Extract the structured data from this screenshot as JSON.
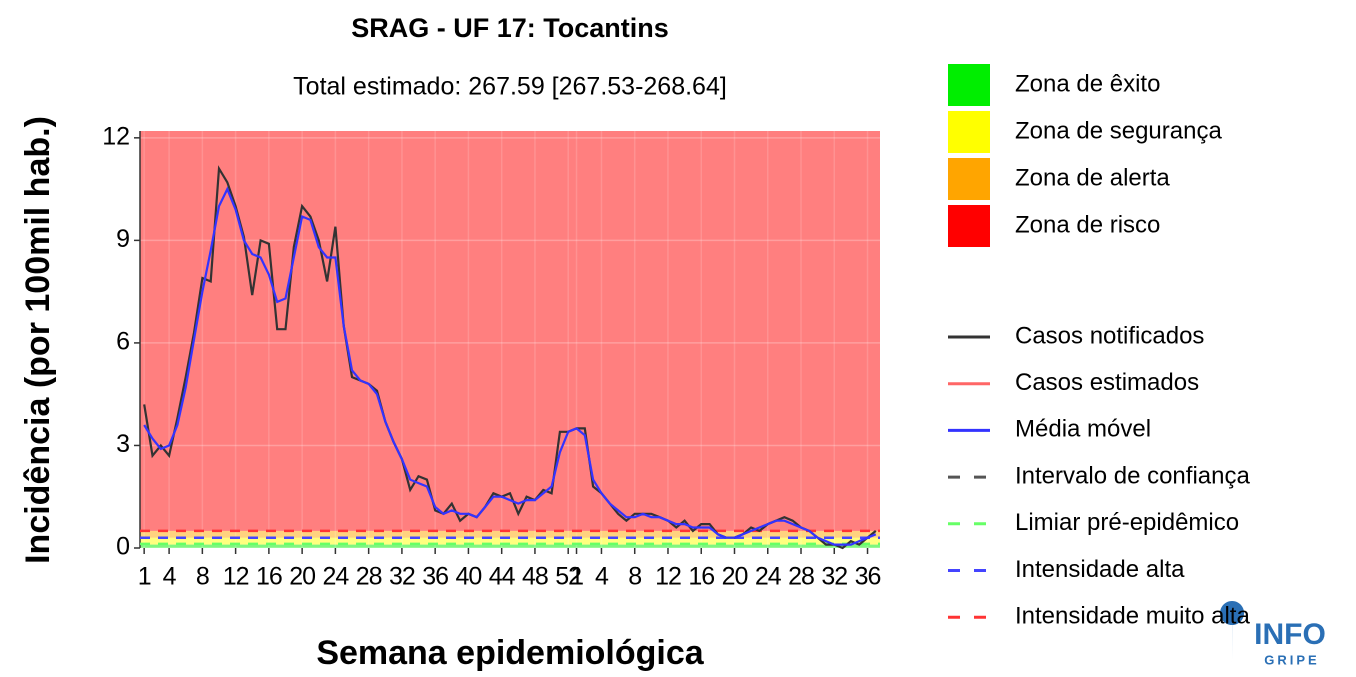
{
  "chart_data": {
    "type": "line",
    "title": "SRAG - UF 17: Tocantins",
    "subtitle": "Total estimado: 267.59 [267.53-268.64]",
    "x_label": "Semana epidemiológica",
    "y_label": "Incidência (por 100mil hab.)",
    "categories": [
      "1",
      null,
      null,
      "4",
      null,
      null,
      null,
      "8",
      null,
      null,
      null,
      "12",
      null,
      null,
      null,
      "16",
      null,
      null,
      null,
      "20",
      null,
      null,
      null,
      "24",
      null,
      null,
      null,
      "28",
      null,
      null,
      null,
      "32",
      null,
      null,
      null,
      "36",
      null,
      null,
      null,
      "40",
      null,
      null,
      null,
      "44",
      null,
      null,
      null,
      "48",
      null,
      null,
      null,
      "52",
      "1",
      null,
      null,
      "4",
      null,
      null,
      null,
      "8",
      null,
      null,
      null,
      "12",
      null,
      null,
      null,
      "16",
      null,
      null,
      null,
      "20",
      null,
      null,
      null,
      "24",
      null,
      null,
      null,
      "28",
      null,
      null,
      null,
      "32",
      null,
      null,
      null,
      "36",
      null
    ],
    "ylim": [
      0,
      12.2
    ],
    "yticks": [
      0,
      3,
      6,
      9,
      12
    ],
    "grid": true,
    "zones": [
      {
        "name": "Zona de êxito",
        "color": "#00ee00",
        "range": [
          0,
          0.1
        ]
      },
      {
        "name": "Zona de segurança",
        "color": "#ffff00",
        "range": [
          0.1,
          0.3
        ]
      },
      {
        "name": "Zona de alerta",
        "color": "#ffa500",
        "range": [
          0.3,
          0.5
        ]
      },
      {
        "name": "Zona de risco",
        "color": "#ff0000",
        "range": [
          0.5,
          12.2
        ]
      }
    ],
    "series": [
      {
        "name": "Casos notificados",
        "color": "#333333",
        "values": [
          4.2,
          2.7,
          3.0,
          2.7,
          3.8,
          5.0,
          6.3,
          7.9,
          7.8,
          11.1,
          10.7,
          10.0,
          9.1,
          7.4,
          9.0,
          8.9,
          6.4,
          6.4,
          8.8,
          10.0,
          9.7,
          9.0,
          7.8,
          9.4,
          6.5,
          5.0,
          4.9,
          4.8,
          4.6,
          3.7,
          3.1,
          2.6,
          1.7,
          2.1,
          2.0,
          1.1,
          1.0,
          1.3,
          0.8,
          1.0,
          0.9,
          1.2,
          1.6,
          1.5,
          1.6,
          1.0,
          1.5,
          1.4,
          1.7,
          1.6,
          3.4,
          3.4,
          3.5,
          3.5,
          1.8,
          1.6,
          1.3,
          1.0,
          0.8,
          1.0,
          1.0,
          1.0,
          0.9,
          0.8,
          0.6,
          0.8,
          0.5,
          0.7,
          0.7,
          0.4,
          0.3,
          0.3,
          0.4,
          0.6,
          0.5,
          0.7,
          0.8,
          0.9,
          0.8,
          0.6,
          0.5,
          0.3,
          0.1,
          0.1,
          0.0,
          0.2,
          0.1,
          0.3,
          0.5
        ]
      },
      {
        "name": "Casos estimados",
        "color": "#ff6666"
      },
      {
        "name": "Média móvel",
        "color": "#3333ff",
        "values": [
          3.6,
          3.2,
          2.9,
          3.0,
          3.6,
          4.7,
          6.1,
          7.5,
          8.7,
          10.0,
          10.5,
          9.9,
          9.0,
          8.6,
          8.5,
          8.0,
          7.2,
          7.3,
          8.5,
          9.7,
          9.6,
          8.8,
          8.5,
          8.5,
          6.5,
          5.2,
          4.9,
          4.8,
          4.5,
          3.7,
          3.1,
          2.6,
          2.0,
          1.9,
          1.8,
          1.2,
          1.0,
          1.1,
          1.0,
          1.0,
          0.9,
          1.2,
          1.5,
          1.5,
          1.4,
          1.3,
          1.4,
          1.4,
          1.6,
          1.8,
          2.8,
          3.4,
          3.5,
          3.3,
          2.0,
          1.6,
          1.3,
          1.1,
          0.9,
          0.9,
          1.0,
          0.9,
          0.9,
          0.8,
          0.7,
          0.7,
          0.6,
          0.6,
          0.6,
          0.4,
          0.3,
          0.3,
          0.4,
          0.5,
          0.6,
          0.7,
          0.8,
          0.8,
          0.7,
          0.6,
          0.5,
          0.3,
          0.2,
          0.1,
          0.1,
          0.1,
          0.2,
          0.3,
          0.4
        ]
      },
      {
        "name": "Intervalo de confiança",
        "color": "#555555",
        "dashed": true
      },
      {
        "name": "Limiar pré-epidêmico",
        "color": "#66ff66",
        "dashed": true,
        "value": 0.12
      },
      {
        "name": "Intensidade alta",
        "color": "#4444ff",
        "dashed": true,
        "value": 0.3
      },
      {
        "name": "Intensidade muito alta",
        "color": "#ff3333",
        "dashed": true,
        "value": 0.5
      }
    ],
    "logo": {
      "top": "INFO",
      "bottom": "GRIPE"
    }
  }
}
